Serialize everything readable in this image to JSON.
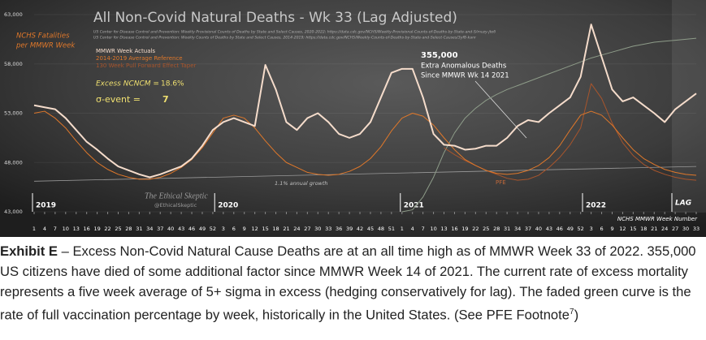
{
  "chart_data": {
    "type": "line",
    "title": "All Non-Covid Natural Deaths - Wk 33 (Lag Adjusted)",
    "sources": [
      "US Center for Disease Control and Prevention: Weekly Provisional Counts of Deaths by State and Select Causes, 2020-2022; https://data.cdc.gov/NCHS/Weekly-Provisional-Counts-of-Deaths-by-State-and-S/muzy-jte6",
      "US Center for Disease Control and Prevention: Weekly Counts of Deaths by State and Select Causes, 2014-2019; https://data.cdc.gov/NCHS/Weekly-Counts-of-Deaths-by-State-and-Select-Causes/3yf8-kanr"
    ],
    "y_label": [
      "NCHS Fatalities",
      "per MMWR Week"
    ],
    "x_label": "NCHS MMWR Week Number",
    "x": [
      1,
      4,
      7,
      10,
      13,
      16,
      19,
      22,
      25,
      28,
      31,
      34,
      37,
      40,
      43,
      46,
      49,
      52,
      55,
      58,
      61,
      64,
      67,
      70,
      73,
      76,
      79,
      82,
      85,
      88,
      91,
      94,
      97,
      100,
      103,
      106,
      109,
      112,
      115,
      118,
      121,
      124,
      127,
      130,
      133,
      136,
      139,
      142,
      145,
      148,
      151,
      154,
      157,
      160,
      163,
      166,
      169,
      172,
      175,
      178,
      181,
      184,
      187,
      190
    ],
    "series": [
      {
        "name": "MMWR Week Actuals",
        "color": "#f5dccb",
        "values": [
          53800,
          53600,
          53400,
          52500,
          51300,
          50100,
          49300,
          48400,
          47600,
          47200,
          46800,
          46500,
          46800,
          47200,
          47600,
          48400,
          49700,
          51300,
          52100,
          52500,
          52100,
          51700,
          57900,
          55400,
          52100,
          51300,
          52500,
          53000,
          52100,
          50900,
          50500,
          50900,
          52100,
          54600,
          57100,
          57500,
          57500,
          54600,
          50900,
          49800,
          49700,
          49300,
          49400,
          49700,
          49700,
          50500,
          51700,
          52300,
          52100,
          53000,
          53800,
          54600,
          56700,
          62000,
          58700,
          55400,
          54200,
          54600,
          53800,
          53000,
          52100,
          53400,
          54200,
          55000
        ]
      },
      {
        "name": "2014-2019 Average Reference",
        "color": "#e0782a",
        "values": [
          53000,
          53200,
          52500,
          51500,
          50200,
          49000,
          48000,
          47300,
          46800,
          46500,
          46300,
          46300,
          46500,
          46900,
          47500,
          48300,
          49500,
          51000,
          52500,
          52800,
          52500,
          51500,
          50200,
          49000,
          48000,
          47500,
          47000,
          46800,
          46700,
          46800,
          47100,
          47600,
          48400,
          49600,
          51200,
          52500,
          53000,
          52700,
          51800,
          50500,
          49300,
          48300,
          47700,
          47200,
          46900,
          46800,
          46900,
          47200,
          47700,
          48500,
          49700,
          51300,
          52800,
          53200,
          52800,
          51800,
          50500,
          49300,
          48400,
          47800,
          47300,
          47000,
          46800,
          46700
        ]
      },
      {
        "name": "130 Week Pull Forward Effect Taper",
        "color": "#a8552c",
        "values": [
          null,
          null,
          null,
          null,
          null,
          null,
          null,
          null,
          null,
          null,
          null,
          null,
          null,
          null,
          null,
          null,
          null,
          null,
          null,
          null,
          null,
          null,
          null,
          null,
          null,
          null,
          null,
          null,
          null,
          null,
          null,
          null,
          null,
          null,
          null,
          null,
          null,
          null,
          null,
          49500,
          48800,
          48200,
          47700,
          47200,
          46800,
          46400,
          46200,
          46300,
          46700,
          47500,
          48500,
          49800,
          51500,
          56000,
          54500,
          52000,
          50000,
          48700,
          47800,
          47200,
          46800,
          46500,
          46300,
          46200
        ]
      },
      {
        "color": "#8e9c89",
        "values": [
          null,
          null,
          null,
          null,
          null,
          null,
          null,
          null,
          null,
          null,
          null,
          null,
          null,
          null,
          null,
          null,
          null,
          null,
          null,
          null,
          null,
          null,
          null,
          null,
          null,
          null,
          null,
          null,
          null,
          null,
          null,
          null,
          null,
          null,
          null,
          43000,
          43200,
          44500,
          46500,
          49000,
          51000,
          52500,
          53500,
          54300,
          54900,
          55400,
          55800,
          56200,
          56600,
          57000,
          57400,
          57800,
          58200,
          58600,
          58900,
          59200,
          59500,
          59800,
          60000,
          60200,
          60300,
          60400,
          60500,
          60600
        ]
      }
    ],
    "trend": {
      "label": "1.1% annual growth",
      "color": "#9a9a9a",
      "x": [
        1,
        190
      ],
      "values": [
        46100,
        47600
      ]
    },
    "pfe_label": "PFE",
    "excess": {
      "label": "Excess NCNCM =",
      "value": "18.6%"
    },
    "sigma": {
      "label": "σ-event =",
      "value": "7"
    },
    "callout": [
      "355,000",
      "Extra Anomalous Deaths",
      "Since MMWR Wk 14 2021"
    ],
    "years": [
      "2019",
      "2020",
      "2021",
      "2022"
    ],
    "lag_label": "LAG",
    "watermark": [
      "The Ethical Skeptic",
      "@EthicalSkeptic"
    ],
    "xlim": [
      1,
      190
    ],
    "ylim": [
      43000,
      63000
    ],
    "yticks": [
      {
        "value": 43000,
        "label": "43,000"
      },
      {
        "value": 48000,
        "label": "48,000"
      },
      {
        "value": 53000,
        "label": "53,000"
      },
      {
        "value": 58000,
        "label": "58,000"
      },
      {
        "value": 63000,
        "label": "63,000"
      }
    ],
    "xticks": [
      {
        "value": 1,
        "label": "1"
      },
      {
        "value": 4,
        "label": "4"
      },
      {
        "value": 7,
        "label": "7"
      },
      {
        "value": 10,
        "label": "10"
      },
      {
        "value": 13,
        "label": "13"
      },
      {
        "value": 16,
        "label": "16"
      },
      {
        "value": 19,
        "label": "19"
      },
      {
        "value": 22,
        "label": "22"
      },
      {
        "value": 25,
        "label": "25"
      },
      {
        "value": 28,
        "label": "28"
      },
      {
        "value": 31,
        "label": "31"
      },
      {
        "value": 34,
        "label": "34"
      },
      {
        "value": 37,
        "label": "37"
      },
      {
        "value": 40,
        "label": "40"
      },
      {
        "value": 43,
        "label": "43"
      },
      {
        "value": 46,
        "label": "46"
      },
      {
        "value": 49,
        "label": "49"
      },
      {
        "value": 52,
        "label": "52"
      },
      {
        "value": 55,
        "label": "3"
      },
      {
        "value": 58,
        "label": "6"
      },
      {
        "value": 61,
        "label": "9"
      },
      {
        "value": 64,
        "label": "12"
      },
      {
        "value": 67,
        "label": "15"
      },
      {
        "value": 70,
        "label": "18"
      },
      {
        "value": 73,
        "label": "21"
      },
      {
        "value": 76,
        "label": "24"
      },
      {
        "value": 79,
        "label": "27"
      },
      {
        "value": 82,
        "label": "30"
      },
      {
        "value": 85,
        "label": "33"
      },
      {
        "value": 88,
        "label": "36"
      },
      {
        "value": 91,
        "label": "39"
      },
      {
        "value": 94,
        "label": "42"
      },
      {
        "value": 97,
        "label": "45"
      },
      {
        "value": 100,
        "label": "48"
      },
      {
        "value": 103,
        "label": "51"
      },
      {
        "value": 106,
        "label": "1"
      },
      {
        "value": 109,
        "label": "4"
      },
      {
        "value": 112,
        "label": "7"
      },
      {
        "value": 115,
        "label": "10"
      },
      {
        "value": 118,
        "label": "13"
      },
      {
        "value": 121,
        "label": "16"
      },
      {
        "value": 124,
        "label": "19"
      },
      {
        "value": 127,
        "label": "22"
      },
      {
        "value": 130,
        "label": "25"
      },
      {
        "value": 133,
        "label": "28"
      },
      {
        "value": 136,
        "label": "31"
      },
      {
        "value": 139,
        "label": "34"
      },
      {
        "value": 142,
        "label": "37"
      },
      {
        "value": 145,
        "label": "40"
      },
      {
        "value": 148,
        "label": "43"
      },
      {
        "value": 151,
        "label": "46"
      },
      {
        "value": 154,
        "label": "49"
      },
      {
        "value": 157,
        "label": "52"
      },
      {
        "value": 160,
        "label": "3"
      },
      {
        "value": 163,
        "label": "6"
      },
      {
        "value": 166,
        "label": "9"
      },
      {
        "value": 169,
        "label": "12"
      },
      {
        "value": 172,
        "label": "15"
      },
      {
        "value": 175,
        "label": "18"
      },
      {
        "value": 178,
        "label": "21"
      },
      {
        "value": 181,
        "label": "24"
      },
      {
        "value": 184,
        "label": "27"
      },
      {
        "value": 187,
        "label": "30"
      },
      {
        "value": 190,
        "label": "33"
      }
    ]
  },
  "caption": {
    "label": "Exhibit E",
    "text": " – Excess Non-Covid Natural Cause Deaths are at an all time high as of MMWR Week 33 of 2022. 355,000 US citizens have died of some additional factor since MMWR Week 14 of 2021. The current rate of excess mortality represents a five week average of 5+ sigma in excess (hedging conservatively for lag). The faded green curve is the rate of full vaccination percentage by week, historically in the United States. (See PFE Footnote",
    "footnote": "7",
    "close": ")"
  }
}
